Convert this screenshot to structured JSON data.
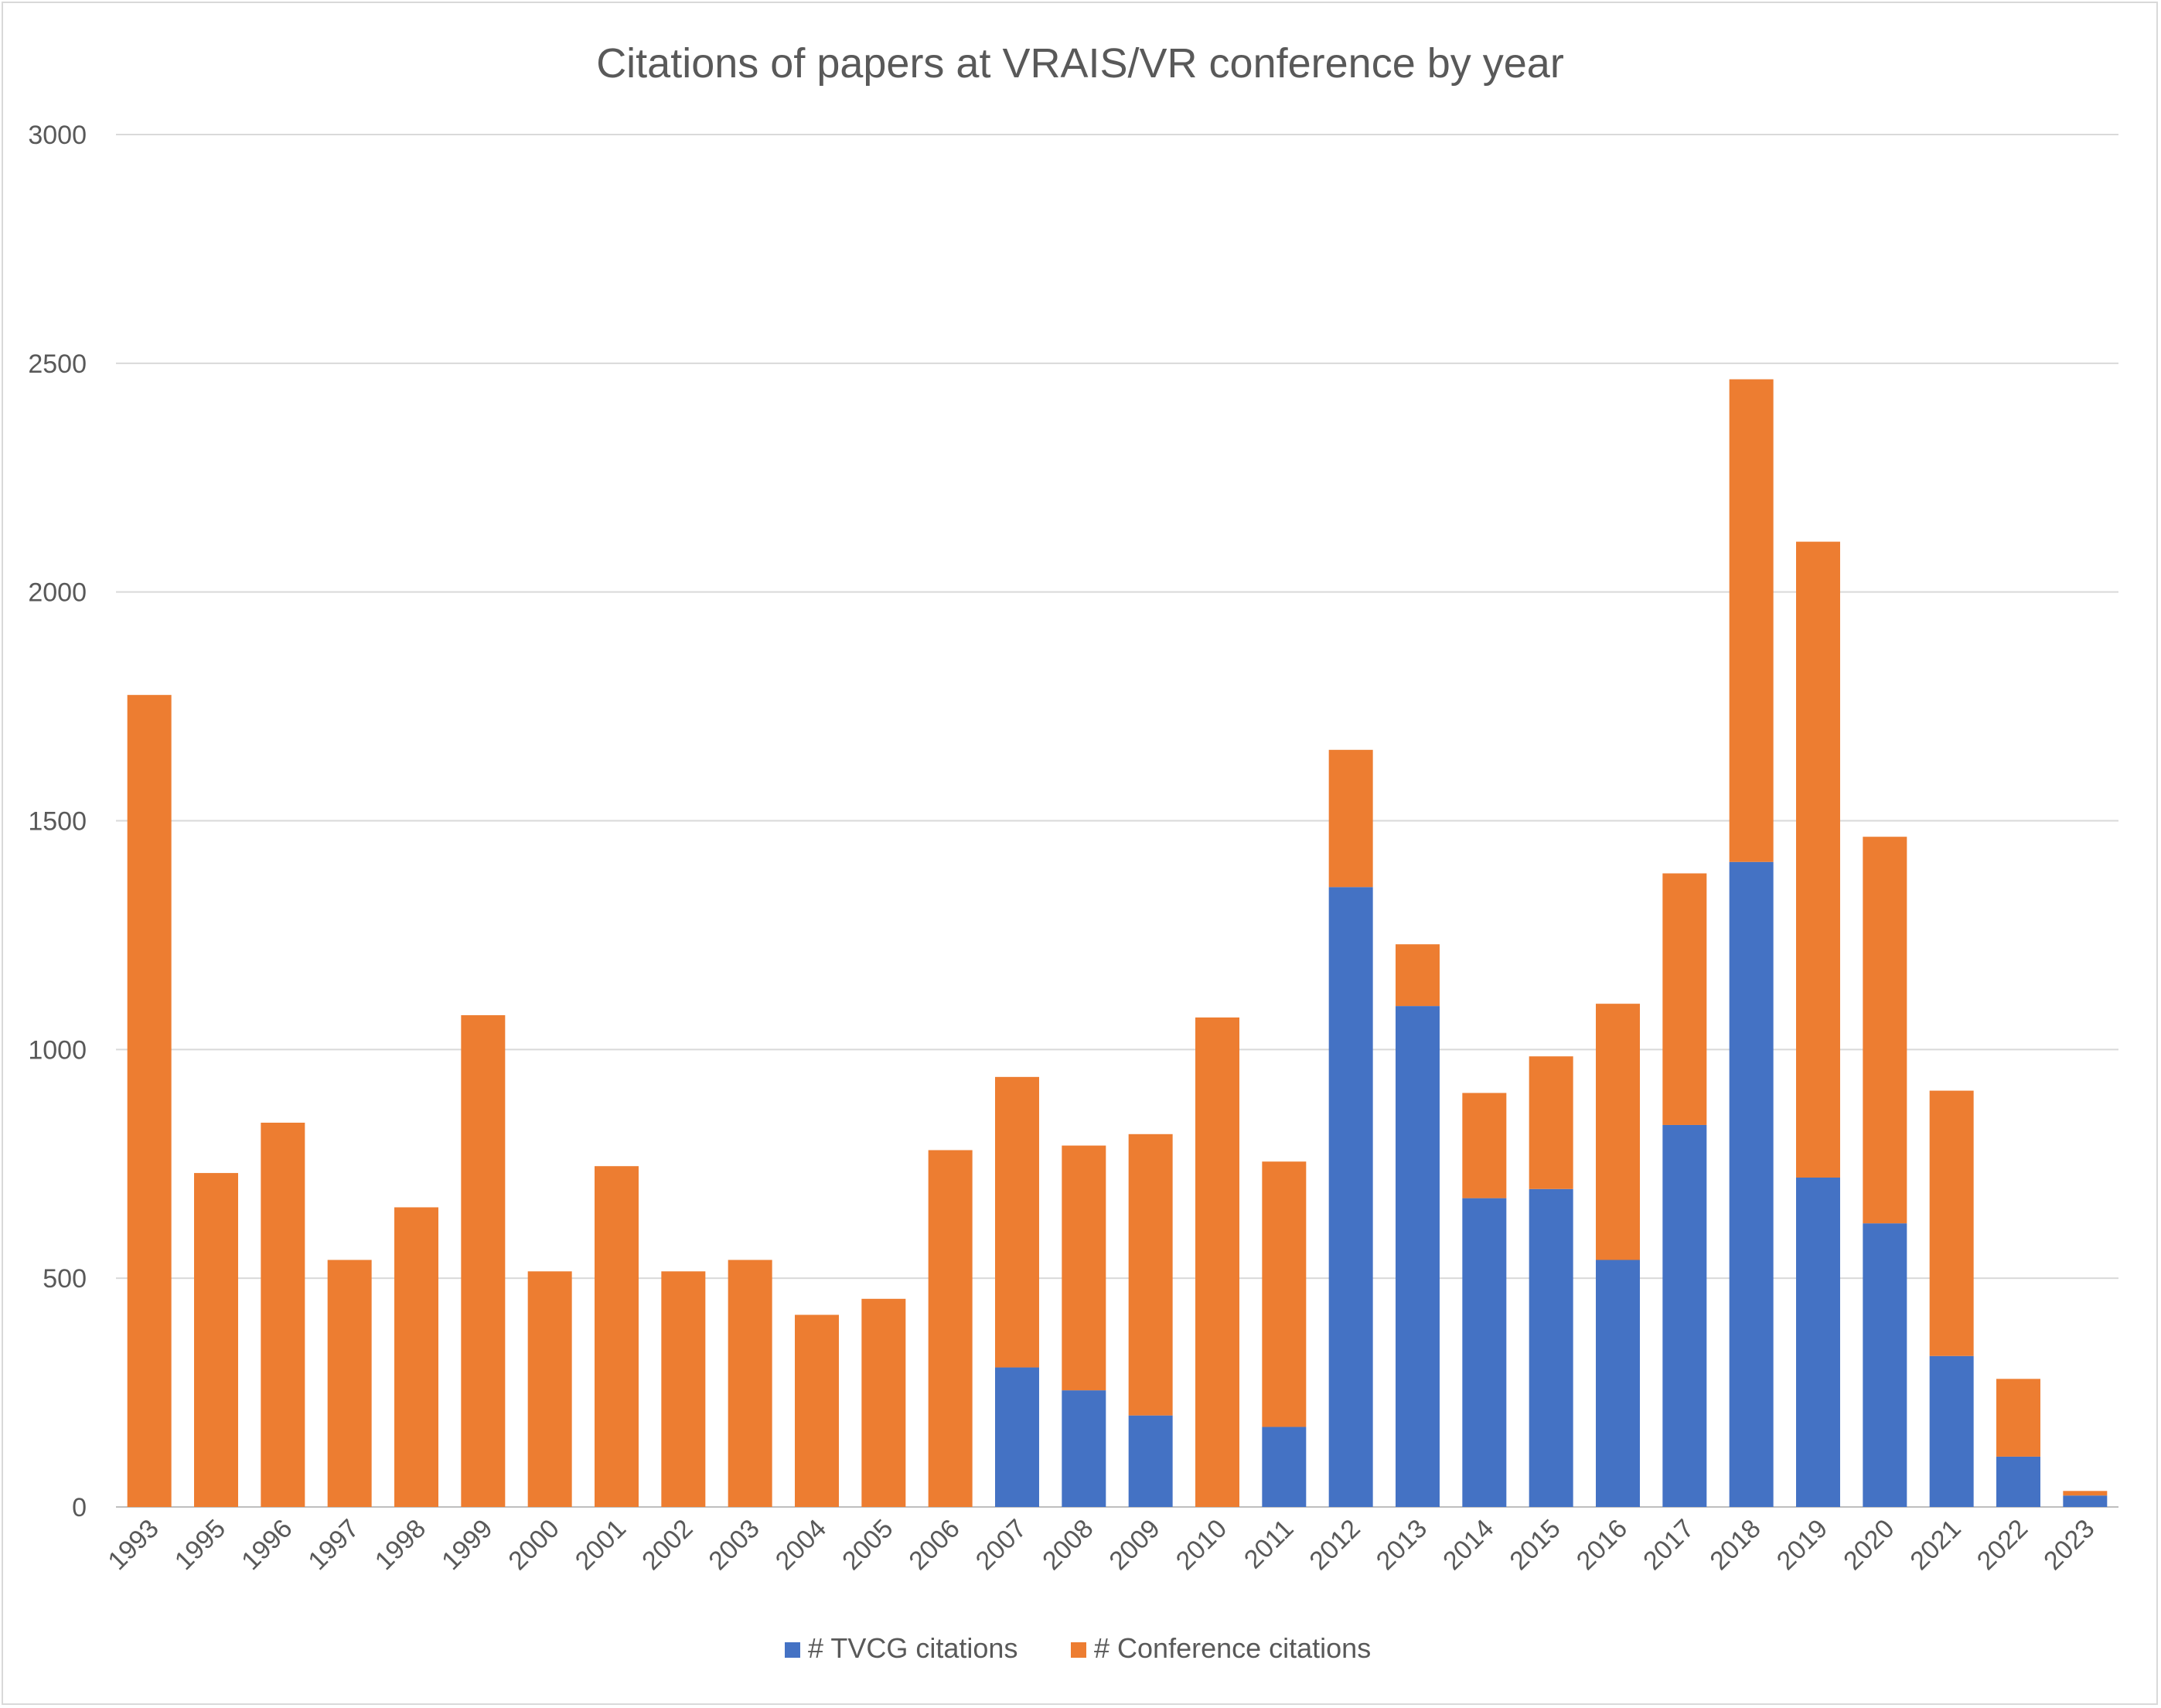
{
  "chart_data": {
    "type": "bar",
    "stacked": true,
    "title": "Citations of papers at VRAIS/VR conference by year",
    "xlabel": "",
    "ylabel": "",
    "ylim": [
      0,
      3000
    ],
    "yticks": [
      0,
      500,
      1000,
      1500,
      2000,
      2500,
      3000
    ],
    "grid": true,
    "legend_position": "bottom",
    "categories": [
      "1993",
      "1995",
      "1996",
      "1997",
      "1998",
      "1999",
      "2000",
      "2001",
      "2002",
      "2003",
      "2004",
      "2005",
      "2006",
      "2007",
      "2008",
      "2009",
      "2010",
      "2011",
      "2012",
      "2013",
      "2014",
      "2015",
      "2016",
      "2017",
      "2018",
      "2019",
      "2020",
      "2021",
      "2022",
      "2023"
    ],
    "series": [
      {
        "name": "# TVCG citations",
        "color": "#4472c4",
        "values": [
          0,
          0,
          0,
          0,
          0,
          0,
          0,
          0,
          0,
          0,
          0,
          0,
          0,
          305,
          255,
          200,
          0,
          175,
          1355,
          1095,
          675,
          695,
          540,
          835,
          1410,
          720,
          620,
          330,
          110,
          25
        ]
      },
      {
        "name": "# Conference citations",
        "color": "#ed7d31",
        "values": [
          1775,
          730,
          840,
          540,
          655,
          1075,
          515,
          745,
          515,
          540,
          420,
          455,
          780,
          635,
          535,
          615,
          1070,
          580,
          300,
          135,
          230,
          290,
          560,
          550,
          1055,
          1390,
          845,
          580,
          170,
          10
        ]
      }
    ]
  }
}
